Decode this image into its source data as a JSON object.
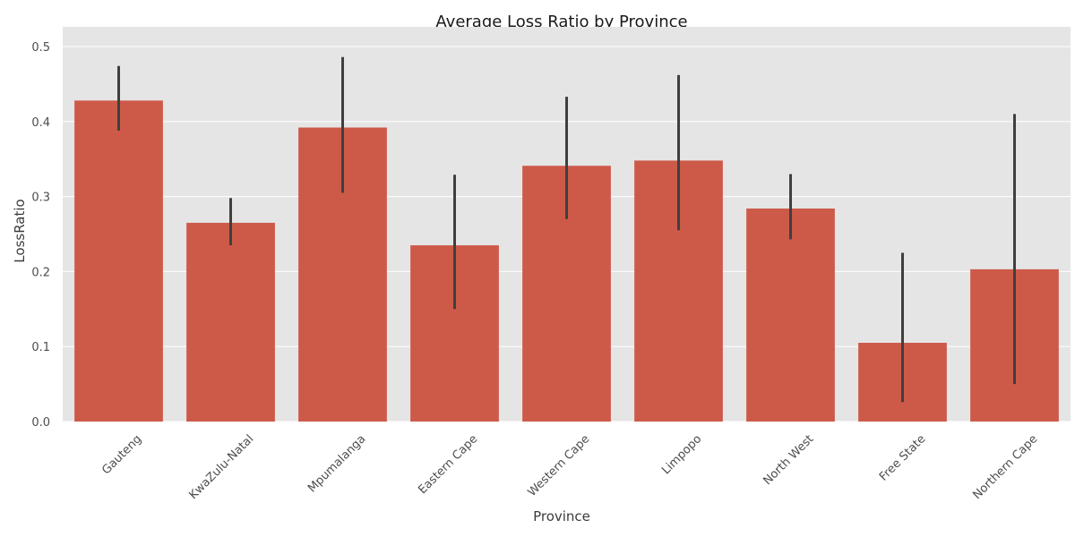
{
  "chart_data": {
    "type": "bar",
    "title": "Average Loss Ratio by Province",
    "xlabel": "Province",
    "ylabel": "LossRatio",
    "categories": [
      "Gauteng",
      "KwaZulu-Natal",
      "Mpumalanga",
      "Eastern Cape",
      "Western Cape",
      "Limpopo",
      "North West",
      "Free State",
      "Northern Cape"
    ],
    "values": [
      0.428,
      0.265,
      0.392,
      0.235,
      0.341,
      0.348,
      0.284,
      0.105,
      0.203
    ],
    "ci_low": [
      0.388,
      0.235,
      0.305,
      0.15,
      0.27,
      0.255,
      0.243,
      0.026,
      0.05
    ],
    "ci_high": [
      0.474,
      0.298,
      0.486,
      0.329,
      0.433,
      0.462,
      0.33,
      0.225,
      0.41
    ],
    "ylim": [
      0,
      0.5
    ],
    "yticks": [
      0.0,
      0.1,
      0.2,
      0.3,
      0.4,
      0.5
    ],
    "ytick_labels": [
      "0.0",
      "0.1",
      "0.2",
      "0.3",
      "0.4",
      "0.5"
    ],
    "grid": true,
    "legend": "none",
    "colors": {
      "bar": "#cd5a49",
      "errorbar": "#3f3f3f",
      "plot_bg": "#e5e5e5",
      "grid": "#ffffff"
    }
  }
}
